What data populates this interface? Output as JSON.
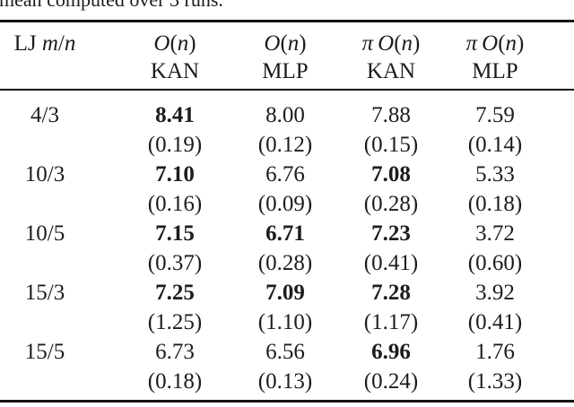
{
  "caption": {
    "text": "mean computed over 3 runs."
  },
  "colors": {
    "text": "#1c1c1c",
    "rule": "#141414",
    "background": "#ffffff"
  },
  "table": {
    "header": {
      "row_label": {
        "prefix": "LJ",
        "numerator": "m",
        "slash": "/",
        "denominator": "n"
      },
      "columns": [
        {
          "pi": "",
          "group_symbol": "O",
          "open_paren": "(",
          "arg": "n",
          "close_paren": ")",
          "model": "KAN"
        },
        {
          "pi": "",
          "group_symbol": "O",
          "open_paren": "(",
          "arg": "n",
          "close_paren": ")",
          "model": "MLP"
        },
        {
          "pi": "π",
          "group_symbol": "O",
          "open_paren": "(",
          "arg": "n",
          "close_paren": ")",
          "model": "KAN"
        },
        {
          "pi": "π",
          "group_symbol": "O",
          "open_paren": "(",
          "arg": "n",
          "close_paren": ")",
          "model": "MLP"
        }
      ]
    },
    "rows": [
      {
        "label": "4/3",
        "values": [
          {
            "v": "8.41",
            "bold": true
          },
          {
            "v": "8.00",
            "bold": false
          },
          {
            "v": "7.88",
            "bold": false
          },
          {
            "v": "7.59",
            "bold": false
          }
        ],
        "stds": [
          "(0.19)",
          "(0.12)",
          "(0.15)",
          "(0.14)"
        ]
      },
      {
        "label": "10/3",
        "values": [
          {
            "v": "7.10",
            "bold": true
          },
          {
            "v": "6.76",
            "bold": false
          },
          {
            "v": "7.08",
            "bold": true
          },
          {
            "v": "5.33",
            "bold": false
          }
        ],
        "stds": [
          "(0.16)",
          "(0.09)",
          "(0.28)",
          "(0.18)"
        ]
      },
      {
        "label": "10/5",
        "values": [
          {
            "v": "7.15",
            "bold": true
          },
          {
            "v": "6.71",
            "bold": true
          },
          {
            "v": "7.23",
            "bold": true
          },
          {
            "v": "3.72",
            "bold": false
          }
        ],
        "stds": [
          "(0.37)",
          "(0.28)",
          "(0.41)",
          "(0.60)"
        ]
      },
      {
        "label": "15/3",
        "values": [
          {
            "v": "7.25",
            "bold": true
          },
          {
            "v": "7.09",
            "bold": true
          },
          {
            "v": "7.28",
            "bold": true
          },
          {
            "v": "3.92",
            "bold": false
          }
        ],
        "stds": [
          "(1.25)",
          "(1.10)",
          "(1.17)",
          "(0.41)"
        ]
      },
      {
        "label": "15/5",
        "values": [
          {
            "v": "6.73",
            "bold": false
          },
          {
            "v": "6.56",
            "bold": false
          },
          {
            "v": "6.96",
            "bold": true
          },
          {
            "v": "1.76",
            "bold": false
          }
        ],
        "stds": [
          "(0.18)",
          "(0.13)",
          "(0.24)",
          "(1.33)"
        ]
      }
    ]
  }
}
